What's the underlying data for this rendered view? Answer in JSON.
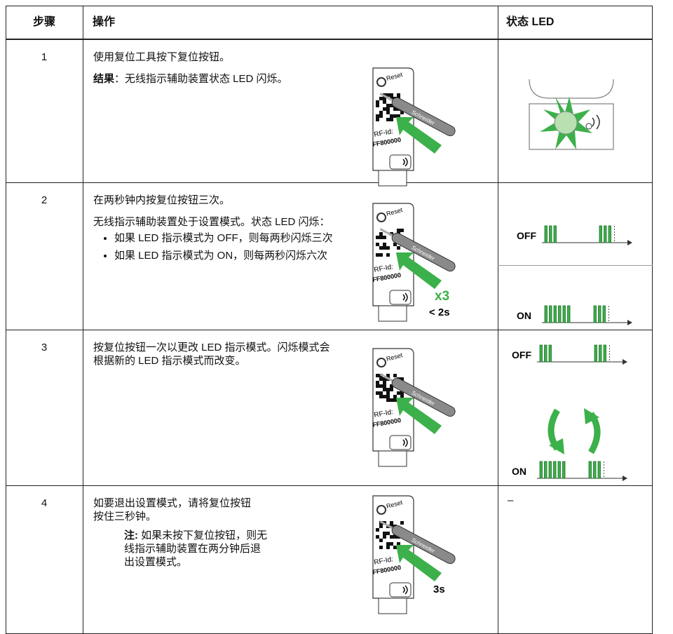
{
  "table": {
    "header": [
      "步骤",
      "操作",
      "状态 LED"
    ],
    "rows": [
      {
        "step": "1",
        "action": [
          "使用复位工具按下复位按钮。"
        ],
        "result": {
          "label": "结果",
          "text": "：无线指示辅助装置状态 LED 闪烁。"
        },
        "device": {
          "labels": [
            "Reset",
            "Schneider",
            "RF-Id:",
            "FF800000"
          ]
        }
      },
      {
        "step": "2",
        "action": [
          "在两秒钟内按复位按钮三次。",
          "无线指示辅助装置处于设置模式。状态 LED 闪烁："
        ],
        "bullets": [
          "如果 LED 指示模式为 OFF，则每两秒闪烁三次",
          "如果 LED 指示模式为 ON，则每两秒闪烁六次"
        ],
        "device": {
          "labels": [
            "Reset",
            "Schneider",
            "RF-Id:",
            "FF800000"
          ],
          "count": "x3",
          "time": "< 2s"
        },
        "led": [
          "OFF",
          "ON"
        ]
      },
      {
        "step": "3",
        "action": [
          "按复位按钮一次以更改 LED 指示模式。闪烁模式会根据新的 LED 指示模式而改变。"
        ],
        "device": {
          "labels": [
            "Reset",
            "Schneider",
            "RF-Id:",
            "FF800000"
          ]
        },
        "led": [
          "OFF",
          "ON"
        ]
      },
      {
        "step": "4",
        "action": [
          "如要退出设置模式，请将复位按钮按住三秒钟。"
        ],
        "note": {
          "label": "注:",
          "text": "如果未按下复位按钮，则无线指示辅助装置在两分钟后退出设置模式。"
        },
        "device": {
          "labels": [
            "Reset",
            "Schneider",
            "RF-Id:",
            "FF800000"
          ],
          "time": "3s"
        },
        "led_text": "–"
      }
    ]
  }
}
